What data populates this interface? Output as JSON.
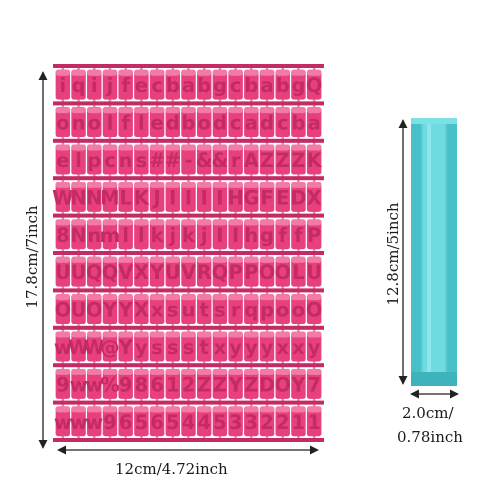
{
  "dimensions": {
    "left_height": "17.8cm/7inch",
    "bottom_width": "12cm/4.72inch",
    "right_height": "12.8cm/5inch",
    "right_width_line1": "2.0cm/",
    "right_width_line2": "0.78inch"
  },
  "colors": {
    "stamp_pink": "#e8407e",
    "stamp_pink_dark": "#c42a63",
    "stamp_pink_light": "#f27aa6",
    "holder_blue": "#5ccfd6",
    "holder_blue_dark": "#38aeb6",
    "arrow": "#222222"
  },
  "stamp_rows": [
    [
      "i",
      "q",
      "i",
      "j",
      "f",
      "e",
      "c",
      "b",
      "a",
      "b",
      "g",
      "c",
      "b",
      "a",
      "b",
      "g",
      "Q"
    ],
    [
      "o",
      "n",
      "o",
      "l",
      "f",
      "l",
      "e",
      "d",
      "b",
      "o",
      "d",
      "c",
      "a",
      "d",
      "c",
      "b",
      "a"
    ],
    [
      "e",
      "l",
      "p",
      "c",
      "n",
      "s",
      "#",
      "#",
      "-",
      "&",
      "&",
      "r",
      "A",
      "Z",
      "Z",
      "Z",
      "K"
    ],
    [
      "W",
      "N",
      "N",
      "M",
      "L",
      "K",
      "J",
      "I",
      "I",
      "I",
      "I",
      "H",
      "G",
      "F",
      "E",
      "D",
      "X"
    ],
    [
      "8",
      "N",
      "n",
      "m",
      "l",
      "l",
      "k",
      "j",
      "k",
      "j",
      "I",
      "I",
      "h",
      "g",
      "f",
      "f",
      "P"
    ],
    [
      "U",
      "U",
      "Q",
      "Q",
      "V",
      "X",
      "Y",
      "U",
      "V",
      "R",
      "Q",
      "P",
      "P",
      "O",
      "O",
      "L",
      "U"
    ],
    [
      "O",
      "U",
      "O",
      "Y",
      "Y",
      "X",
      "x",
      "s",
      "u",
      "t",
      "s",
      "r",
      "q",
      "p",
      "o",
      "o",
      "O"
    ],
    [
      "w",
      "W",
      "W",
      "@",
      "Y",
      "y",
      "s",
      "s",
      "s",
      "t",
      "x",
      "y",
      "y",
      "y",
      "x",
      "x",
      "y"
    ],
    [
      "9",
      "w",
      "w",
      "%",
      "9",
      "8",
      "6",
      "1",
      "2",
      "Z",
      "Z",
      "Y",
      "Z",
      "D",
      "O",
      "Y",
      "7"
    ],
    [
      "w",
      "w",
      "w",
      "9",
      "6",
      "5",
      "6",
      "5",
      "4",
      "4",
      "5",
      "3",
      "3",
      "2",
      "2",
      "1",
      "1"
    ]
  ]
}
